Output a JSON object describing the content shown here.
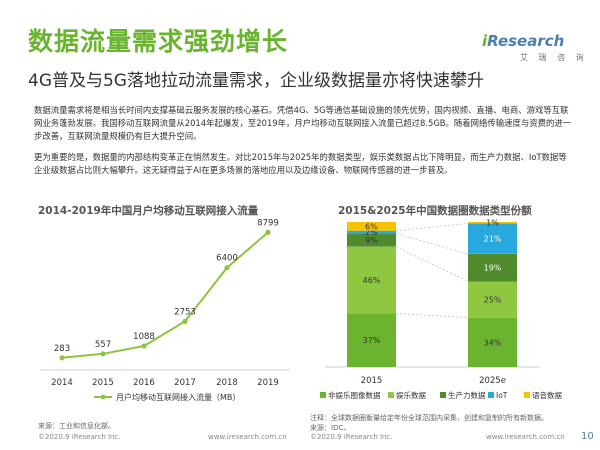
{
  "header": {
    "title": "数据流量需求强劲增长",
    "subtitle": "4G普及与5G落地拉动流量需求，企业级数据量亦将快速攀升",
    "logo_brand_i": "i",
    "logo_brand_rest": "Research",
    "logo_sub": "艾 瑞 咨 询"
  },
  "body": {
    "paragraph1": "数据流量需求将是相当长时间内支撑基础云服务发展的核心基石。凭借4G、5G等通信基础设施的领先优势，国内视频、直播、电商、游戏等互联网业务蓬勃发展。我国移动互联网流量从2014年起爆发，至2019年，月户均移动互联网接入流量已超过8.5GB。随着网络传输速度与资费的进一步改善，互联网流量规模仍有巨大提升空间。",
    "paragraph2": "更为重要的是，数据量的内部结构变革正在悄然发生。对比2015年与2025年的数据类型，娱乐类数据占比下降明显，而生产力数据、IoT数据等企业级数据占比则大幅攀升。这无疑得益于AI在更多场景的落地应用以及边缘设备、物联网传感器的进一步普及。"
  },
  "charts": {
    "left_title": "2014-2019年中国月户均移动互联网接入流量",
    "right_title": "2015&2025年中国数据圈数据类型份额"
  },
  "chart_data": [
    {
      "type": "line",
      "title": "2014-2019年中国月户均移动互联网接入流量",
      "x": [
        "2014",
        "2015",
        "2016",
        "2017",
        "2018",
        "2019"
      ],
      "series": [
        {
          "name": "月户均移动互联网接入流量（MB）",
          "values": [
            283,
            557,
            1088,
            2753,
            6400,
            8799
          ]
        }
      ],
      "ylim": [
        0,
        9500
      ],
      "grid": false,
      "legend": "bottom",
      "color": "#8cc63f"
    },
    {
      "type": "bar",
      "stacked": true,
      "percent": true,
      "title": "2015&2025年中国数据圈数据类型份额",
      "categories": [
        "2015",
        "2025e"
      ],
      "series": [
        {
          "name": "非娱乐图像数据",
          "values": [
            37,
            34
          ],
          "color": "#6ab42f"
        },
        {
          "name": "娱乐数据",
          "values": [
            46,
            25
          ],
          "color": "#8fc740"
        },
        {
          "name": "生产力数据",
          "values": [
            9,
            19
          ],
          "color": "#4f8a2c"
        },
        {
          "name": "IoT",
          "values": [
            2,
            21
          ],
          "color": "#29a8e0"
        },
        {
          "name": "语音数据",
          "values": [
            6,
            1
          ],
          "color": "#f7c300"
        }
      ],
      "label_suffix": "%",
      "ylim": [
        0,
        100
      ],
      "legend": "bottom"
    }
  ],
  "footer": {
    "source_left": "来源：工业和信息化部。",
    "note_right": "注释：全球数据圈衡量给定年份全球范围内采集、创建和复制的所有新数据。",
    "source_right": "来源：IDC。",
    "copyright_left": "©2020.9 iResearch Inc.",
    "url_left": "www.iresearch.com.cn",
    "copyright_right": "©2020.9 iResearch Inc.",
    "url_right": "www.iresearch.com.cn",
    "page_number": "10"
  }
}
